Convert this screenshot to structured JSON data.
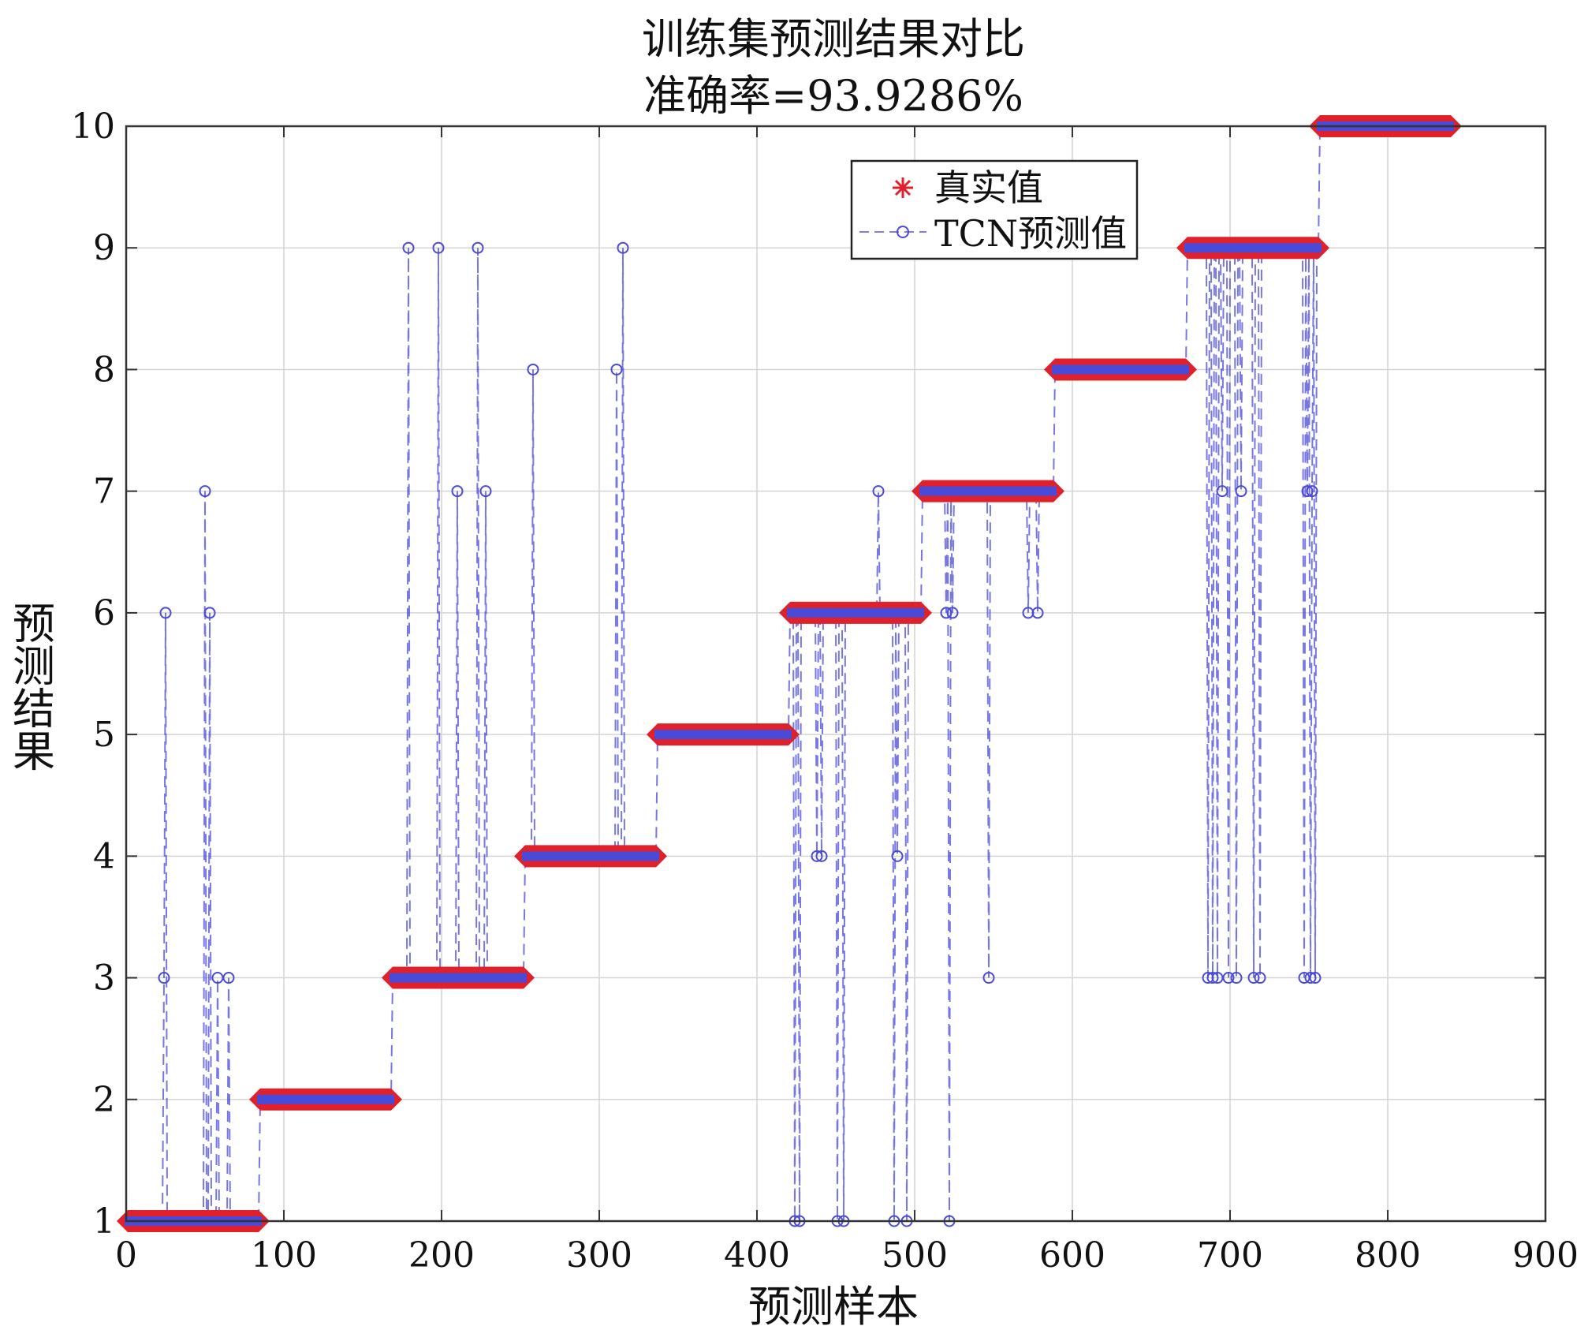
{
  "chart_data": {
    "type": "line",
    "title": "训练集预测结果对比",
    "subtitle": "准确率=93.9286%",
    "xlabel": "预测样本",
    "ylabel": "预测结果",
    "xlim": [
      0,
      900
    ],
    "ylim": [
      1,
      10
    ],
    "xticks": [
      0,
      100,
      200,
      300,
      400,
      500,
      600,
      700,
      800,
      900
    ],
    "yticks": [
      1,
      2,
      3,
      4,
      5,
      6,
      7,
      8,
      9,
      10
    ],
    "grid": true,
    "legend_position": "top-right",
    "series": [
      {
        "name": "真实值",
        "color": "#e0202a",
        "marker": "asterisk",
        "segments": [
          {
            "x_start": 1,
            "x_end": 84,
            "y": 1
          },
          {
            "x_start": 85,
            "x_end": 168,
            "y": 2
          },
          {
            "x_start": 169,
            "x_end": 252,
            "y": 3
          },
          {
            "x_start": 253,
            "x_end": 336,
            "y": 4
          },
          {
            "x_start": 337,
            "x_end": 420,
            "y": 5
          },
          {
            "x_start": 421,
            "x_end": 504,
            "y": 6
          },
          {
            "x_start": 505,
            "x_end": 588,
            "y": 7
          },
          {
            "x_start": 589,
            "x_end": 672,
            "y": 8
          },
          {
            "x_start": 673,
            "x_end": 756,
            "y": 9
          },
          {
            "x_start": 757,
            "x_end": 840,
            "y": 10
          }
        ]
      },
      {
        "name": "TCN预测值",
        "color": "#4a4ad8",
        "marker": "circle",
        "line_style": "dashed",
        "errors": [
          {
            "x": 24,
            "y": 3
          },
          {
            "x": 25,
            "y": 6
          },
          {
            "x": 50,
            "y": 7
          },
          {
            "x": 53,
            "y": 6
          },
          {
            "x": 58,
            "y": 3
          },
          {
            "x": 65,
            "y": 3
          },
          {
            "x": 179,
            "y": 9
          },
          {
            "x": 198,
            "y": 9
          },
          {
            "x": 210,
            "y": 7
          },
          {
            "x": 223,
            "y": 9
          },
          {
            "x": 228,
            "y": 7
          },
          {
            "x": 258,
            "y": 8
          },
          {
            "x": 311,
            "y": 8
          },
          {
            "x": 315,
            "y": 9
          },
          {
            "x": 424,
            "y": 1
          },
          {
            "x": 427,
            "y": 1
          },
          {
            "x": 438,
            "y": 4
          },
          {
            "x": 441,
            "y": 4
          },
          {
            "x": 451,
            "y": 1
          },
          {
            "x": 455,
            "y": 1
          },
          {
            "x": 477,
            "y": 7
          },
          {
            "x": 487,
            "y": 1
          },
          {
            "x": 489,
            "y": 4
          },
          {
            "x": 495,
            "y": 1
          },
          {
            "x": 520,
            "y": 6
          },
          {
            "x": 522,
            "y": 1
          },
          {
            "x": 524,
            "y": 6
          },
          {
            "x": 547,
            "y": 3
          },
          {
            "x": 572,
            "y": 6
          },
          {
            "x": 578,
            "y": 6
          },
          {
            "x": 686,
            "y": 3
          },
          {
            "x": 689,
            "y": 3
          },
          {
            "x": 692,
            "y": 3
          },
          {
            "x": 695,
            "y": 7
          },
          {
            "x": 699,
            "y": 3
          },
          {
            "x": 704,
            "y": 3
          },
          {
            "x": 707,
            "y": 7
          },
          {
            "x": 715,
            "y": 3
          },
          {
            "x": 719,
            "y": 3
          },
          {
            "x": 747,
            "y": 3
          },
          {
            "x": 749,
            "y": 7
          },
          {
            "x": 751,
            "y": 3
          },
          {
            "x": 752,
            "y": 7
          },
          {
            "x": 754,
            "y": 3
          }
        ]
      }
    ]
  }
}
